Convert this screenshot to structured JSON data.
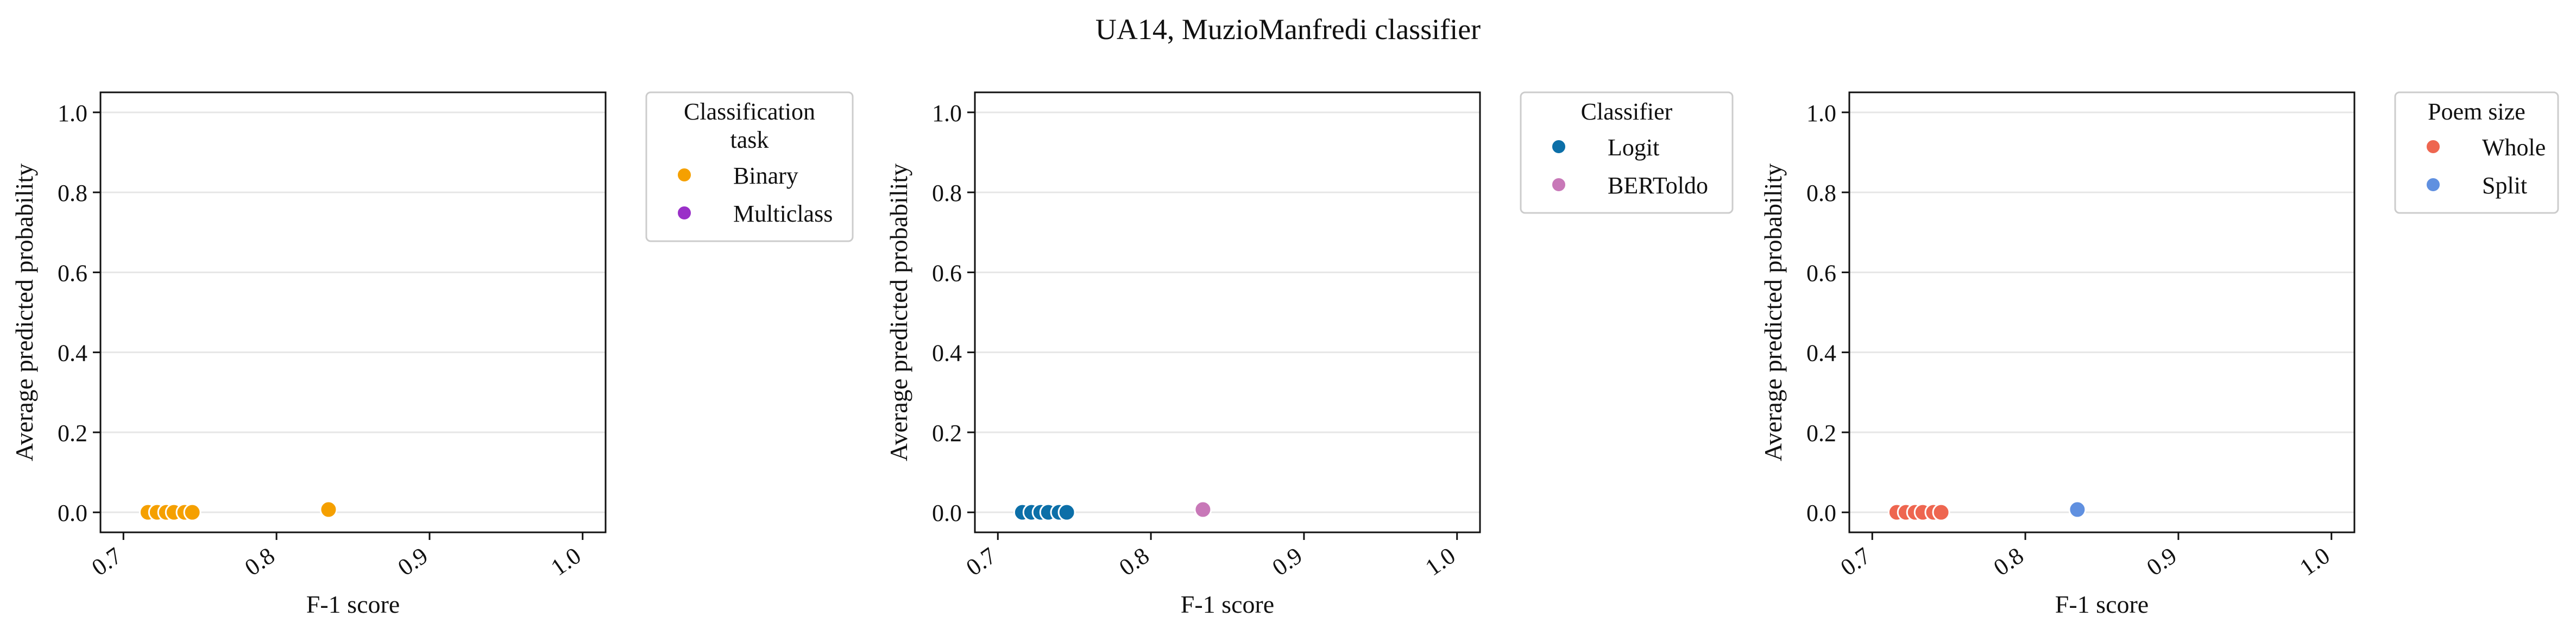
{
  "suptitle": "UA14, MuzioManfredi classifier",
  "chart_data": [
    {
      "type": "scatter",
      "xlabel": "F-1 score",
      "ylabel": "Average predicted probability",
      "xlim": [
        0.685,
        1.015
      ],
      "ylim": [
        -0.05,
        1.05
      ],
      "xticks": [
        "0.7",
        "0.8",
        "0.9",
        "1.0"
      ],
      "yticks": [
        "0.0",
        "0.2",
        "0.4",
        "0.6",
        "0.8",
        "1.0"
      ],
      "grid": "horizontal",
      "legend": {
        "placement": "outside-right",
        "title": "Classification\ntask",
        "entries": [
          {
            "name": "Binary",
            "color": "#F5A000"
          },
          {
            "name": "Multiclass",
            "color": "#9A30C8"
          }
        ]
      },
      "series": [
        {
          "name": "Binary",
          "color": "#F5A000",
          "points": [
            [
              0.716,
              0.0
            ],
            [
              0.722,
              0.0
            ],
            [
              0.728,
              0.0
            ],
            [
              0.733,
              0.0
            ],
            [
              0.74,
              0.0
            ],
            [
              0.745,
              0.0
            ],
            [
              0.834,
              0.007
            ]
          ]
        },
        {
          "name": "Multiclass",
          "color": "#9A30C8",
          "points": []
        }
      ]
    },
    {
      "type": "scatter",
      "xlabel": "F-1 score",
      "ylabel": "Average predicted probability",
      "xlim": [
        0.685,
        1.015
      ],
      "ylim": [
        -0.05,
        1.05
      ],
      "xticks": [
        "0.7",
        "0.8",
        "0.9",
        "1.0"
      ],
      "yticks": [
        "0.0",
        "0.2",
        "0.4",
        "0.6",
        "0.8",
        "1.0"
      ],
      "grid": "horizontal",
      "legend": {
        "placement": "outside-right",
        "title": "Classifier",
        "entries": [
          {
            "name": "Logit",
            "color": "#0C6FA8"
          },
          {
            "name": "BERToldo",
            "color": "#C878B8"
          }
        ]
      },
      "series": [
        {
          "name": "Logit",
          "color": "#0C6FA8",
          "points": [
            [
              0.716,
              0.0
            ],
            [
              0.722,
              0.0
            ],
            [
              0.728,
              0.0
            ],
            [
              0.733,
              0.0
            ],
            [
              0.74,
              0.0
            ],
            [
              0.745,
              0.0
            ]
          ]
        },
        {
          "name": "BERToldo",
          "color": "#C878B8",
          "points": [
            [
              0.834,
              0.007
            ]
          ]
        }
      ]
    },
    {
      "type": "scatter",
      "xlabel": "F-1 score",
      "ylabel": "Average predicted probability",
      "xlim": [
        0.685,
        1.015
      ],
      "ylim": [
        -0.05,
        1.05
      ],
      "xticks": [
        "0.7",
        "0.8",
        "0.9",
        "1.0"
      ],
      "yticks": [
        "0.0",
        "0.2",
        "0.4",
        "0.6",
        "0.8",
        "1.0"
      ],
      "grid": "horizontal",
      "legend": {
        "placement": "outside-right",
        "title": "Poem size",
        "entries": [
          {
            "name": "Whole",
            "color": "#EE6650"
          },
          {
            "name": "Split",
            "color": "#6090E0"
          }
        ]
      },
      "series": [
        {
          "name": "Whole",
          "color": "#EE6650",
          "points": [
            [
              0.716,
              0.0
            ],
            [
              0.722,
              0.0
            ],
            [
              0.728,
              0.0
            ],
            [
              0.733,
              0.0
            ],
            [
              0.74,
              0.0
            ],
            [
              0.745,
              0.0
            ]
          ]
        },
        {
          "name": "Split",
          "color": "#6090E0",
          "points": [
            [
              0.834,
              0.007
            ]
          ]
        }
      ]
    }
  ]
}
